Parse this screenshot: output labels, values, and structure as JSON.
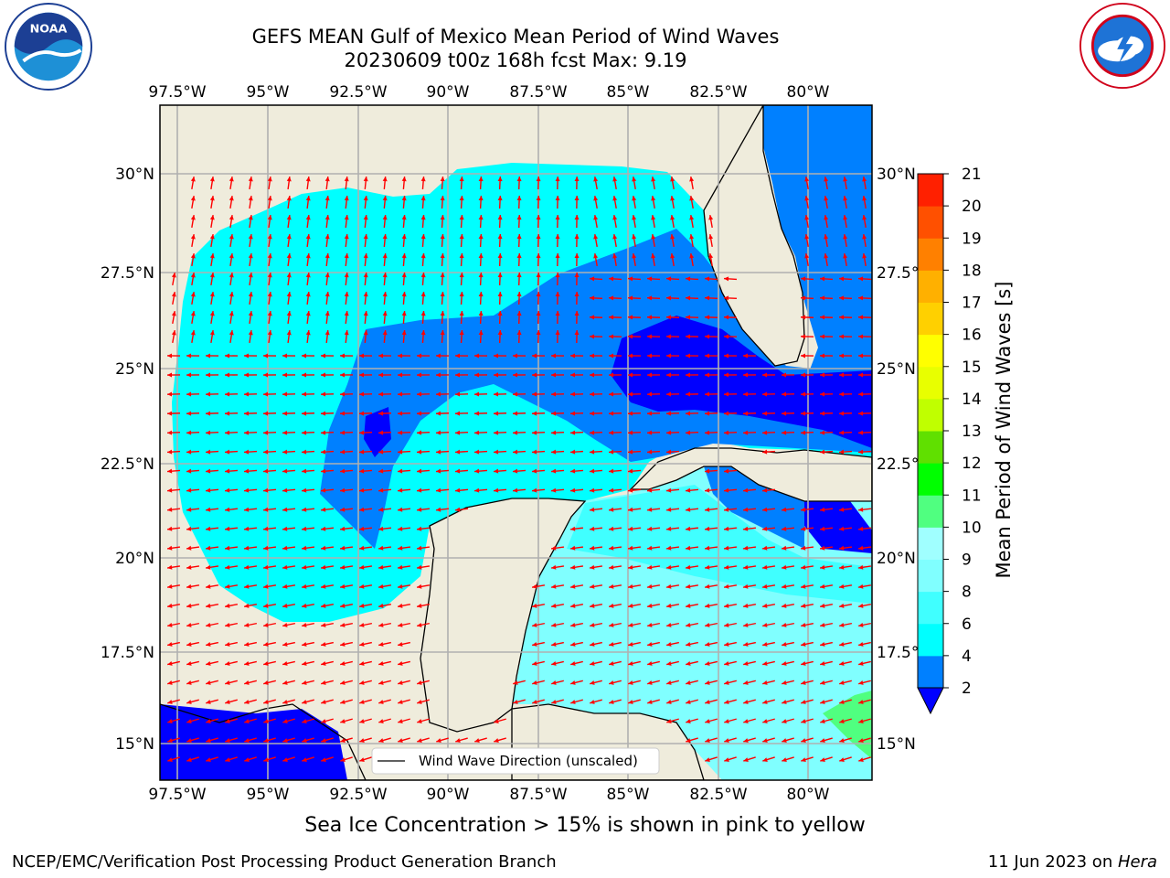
{
  "title": {
    "line1": "GEFS MEAN Gulf of Mexico Mean Period of Wind Waves",
    "line2": "20230609 t00z 168h fcst   Max: 9.19"
  },
  "map": {
    "lon_labels": [
      "97.5°W",
      "95°W",
      "92.5°W",
      "90°W",
      "87.5°W",
      "85°W",
      "82.5°W",
      "80°W"
    ],
    "lat_labels": [
      "30°N",
      "27.5°N",
      "25°N",
      "22.5°N",
      "20°N",
      "17.5°N",
      "15°N"
    ],
    "legend_label": "Wind Wave Direction (unscaled)",
    "vector_color": "#ff0000",
    "land_color": "#efecdc"
  },
  "colorbar": {
    "label": "Mean Period of Wind Waves [s]",
    "ticks": [
      "2",
      "4",
      "6",
      "8",
      "9",
      "10",
      "11",
      "12",
      "13",
      "14",
      "15",
      "16",
      "17",
      "18",
      "19",
      "20",
      "21"
    ],
    "colors": [
      "#0000ff",
      "#0080ff",
      "#00ffff",
      "#40ffff",
      "#80ffff",
      "#a0ffff",
      "#50ff80",
      "#00ff00",
      "#60e000",
      "#c0ff00",
      "#e8ff00",
      "#ffff00",
      "#ffd000",
      "#ffb000",
      "#ff8000",
      "#ff5000",
      "#ff2000",
      "#ff0000"
    ]
  },
  "subtitle": "Sea Ice Concentration > 15% is shown in pink to yellow",
  "footer": {
    "credit": "NCEP/EMC/Verification Post Processing Product Generation Branch",
    "date_prefix": "11 Jun 2023 on ",
    "machine": "Hera"
  }
}
